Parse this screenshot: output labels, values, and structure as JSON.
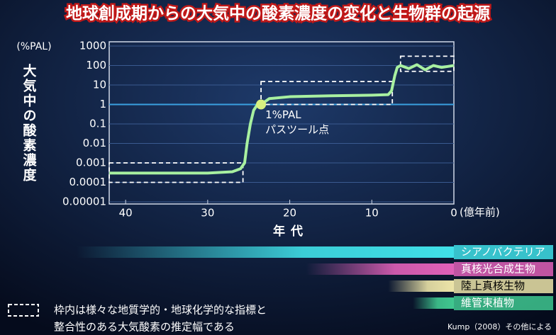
{
  "chart_data": {
    "type": "line",
    "title": "地球創成期からの大気中の酸素濃度の変化と生物群の起源",
    "y_unit": "(%PAL)",
    "y_label": "大気中の酸素濃度",
    "x_label": "年代",
    "x_unit": "(億年前)",
    "log_y": true,
    "grid": true,
    "xlim": [
      42,
      0
    ],
    "xticks": [
      40,
      30,
      20,
      10,
      0
    ],
    "ylim": [
      1e-05,
      1000
    ],
    "yticks": [
      1000,
      100,
      10,
      1,
      0.1,
      0.01,
      0.001,
      0.0001,
      {
        "value": 1e-05,
        "label": "0.00001"
      }
    ],
    "series": [
      {
        "color": "#a8f0a0",
        "x": [
          42,
          30,
          27,
          26,
          25.5,
          25.2,
          24.8,
          24.4,
          24,
          23.5,
          22.5,
          20,
          15,
          10,
          8,
          7.6,
          7.2,
          6.9,
          6.5,
          5.5,
          4.5,
          3.5,
          2.5,
          1.5,
          0
        ],
        "values": [
          0.0003,
          0.0003,
          0.00035,
          0.0005,
          0.001,
          0.01,
          0.1,
          0.5,
          0.9,
          1,
          2,
          2.5,
          2.8,
          3,
          3.2,
          5,
          30,
          80,
          100,
          70,
          110,
          60,
          100,
          80,
          100
        ]
      }
    ],
    "marker": {
      "x": 23.5,
      "value": 1,
      "labels": [
        "1%PAL",
        "パスツール点"
      ]
    },
    "ranges": [
      {
        "x": [
          42,
          25.7
        ],
        "y": [
          0.0001,
          0.001
        ]
      },
      {
        "x": [
          23.5,
          7.5
        ],
        "y": [
          1,
          15
        ]
      },
      {
        "x": [
          6.5,
          0
        ],
        "y": [
          50,
          300
        ]
      }
    ],
    "organisms": [
      {
        "name": "シアノバクテリア",
        "color": "#40e0e8",
        "start": 46
      },
      {
        "name": "真核光合成生物",
        "color": "#e060b8",
        "start": 18
      },
      {
        "name": "陸上真核生物",
        "color": "#ece4a8",
        "start": 8
      },
      {
        "name": "維管束植物",
        "color": "#40c890",
        "start": 5
      }
    ],
    "note": [
      "枠内は様々な地質学的・地球化学的な指標と",
      "整合性のある大気酸素の推定幅である"
    ],
    "source": "Kump（2008）その他による"
  }
}
